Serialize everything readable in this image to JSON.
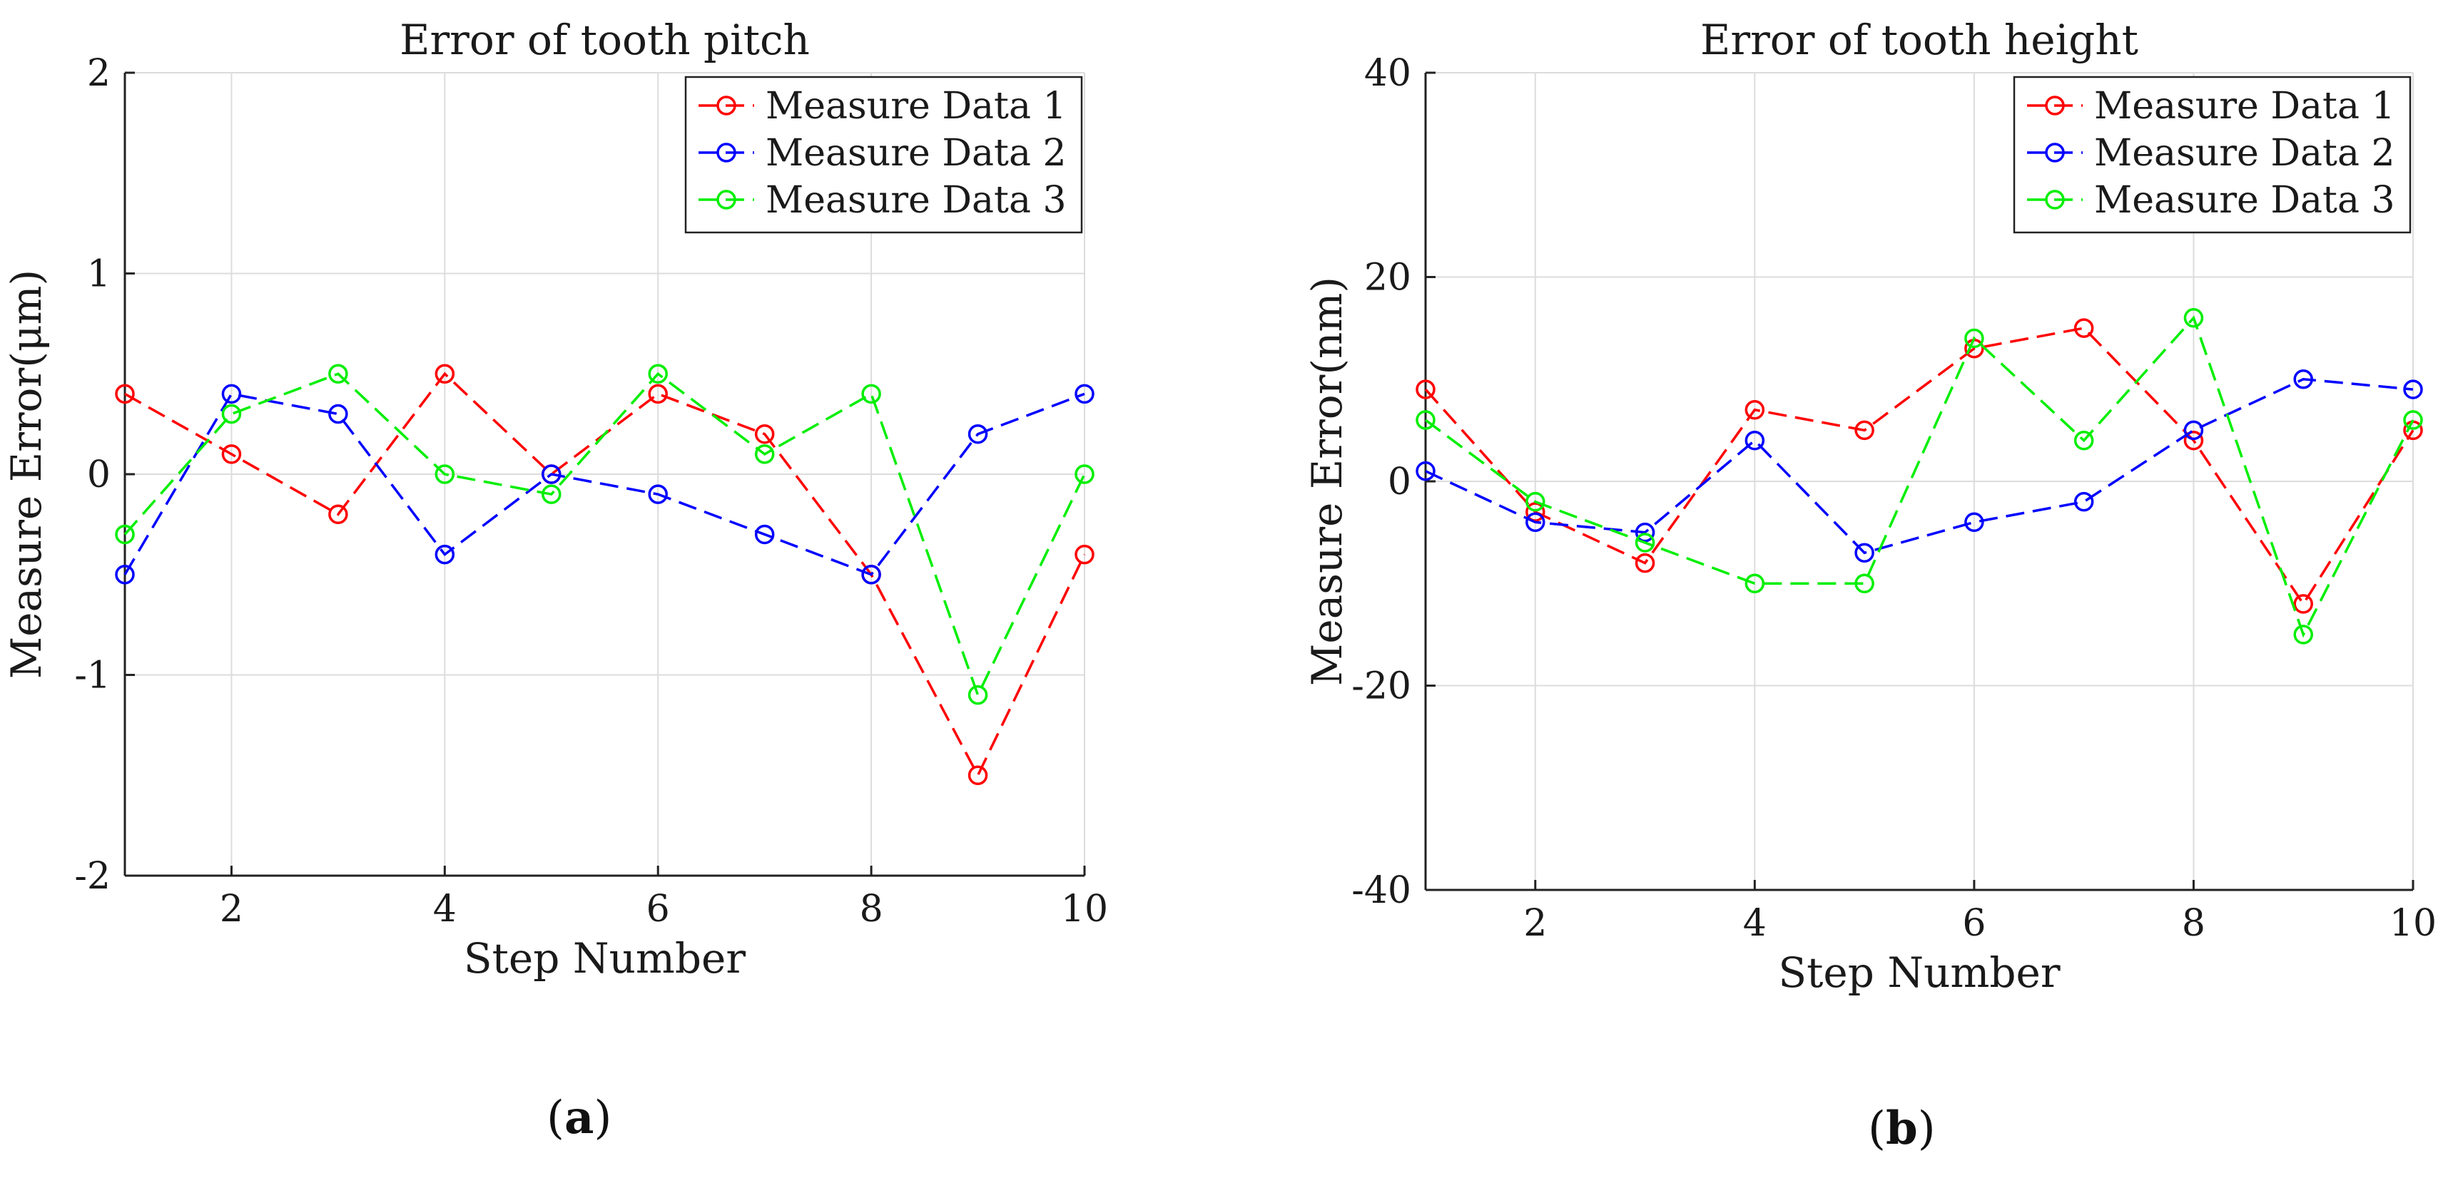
{
  "chart_data": [
    {
      "type": "line",
      "panel_label": "a",
      "title": "Error of tooth pitch",
      "xlabel": "Step Number",
      "ylabel": "Measure Error(μm)",
      "xlim": [
        1,
        10
      ],
      "ylim": [
        -2,
        2
      ],
      "xticks": [
        2,
        4,
        6,
        8,
        10
      ],
      "yticks": [
        -2,
        -1,
        0,
        1,
        2
      ],
      "grid": true,
      "legend_position": "top-right",
      "x": [
        1,
        2,
        3,
        4,
        5,
        6,
        7,
        8,
        9,
        10
      ],
      "series": [
        {
          "name": "Measure Data 1",
          "color": "#ff0000",
          "values": [
            0.4,
            0.1,
            -0.2,
            0.5,
            0.0,
            0.4,
            0.2,
            -0.5,
            -1.5,
            -0.4
          ]
        },
        {
          "name": "Measure Data 2",
          "color": "#0000ff",
          "values": [
            -0.5,
            0.4,
            0.3,
            -0.4,
            0.0,
            -0.1,
            -0.3,
            -0.5,
            0.2,
            0.4
          ]
        },
        {
          "name": "Measure Data 3",
          "color": "#00ee00",
          "values": [
            -0.3,
            0.3,
            0.5,
            0.0,
            -0.1,
            0.5,
            0.1,
            0.4,
            -1.1,
            0.0
          ]
        }
      ]
    },
    {
      "type": "line",
      "panel_label": "b",
      "title": "Error of tooth height",
      "xlabel": "Step Number",
      "ylabel": "Measure Error(nm)",
      "xlim": [
        1,
        10
      ],
      "ylim": [
        -40,
        40
      ],
      "xticks": [
        2,
        4,
        6,
        8,
        10
      ],
      "yticks": [
        -40,
        -20,
        0,
        20,
        40
      ],
      "grid": true,
      "legend_position": "top-right",
      "x": [
        1,
        2,
        3,
        4,
        5,
        6,
        7,
        8,
        9,
        10
      ],
      "series": [
        {
          "name": "Measure Data 1",
          "color": "#ff0000",
          "values": [
            9,
            -3,
            -8,
            7,
            5,
            13,
            15,
            4,
            -12,
            5
          ]
        },
        {
          "name": "Measure Data 2",
          "color": "#0000ff",
          "values": [
            1,
            -4,
            -5,
            4,
            -7,
            -4,
            -2,
            5,
            10,
            9
          ]
        },
        {
          "name": "Measure Data 3",
          "color": "#00ee00",
          "values": [
            6,
            -2,
            -6,
            -10,
            -10,
            14,
            4,
            16,
            -15,
            6
          ]
        }
      ]
    }
  ]
}
